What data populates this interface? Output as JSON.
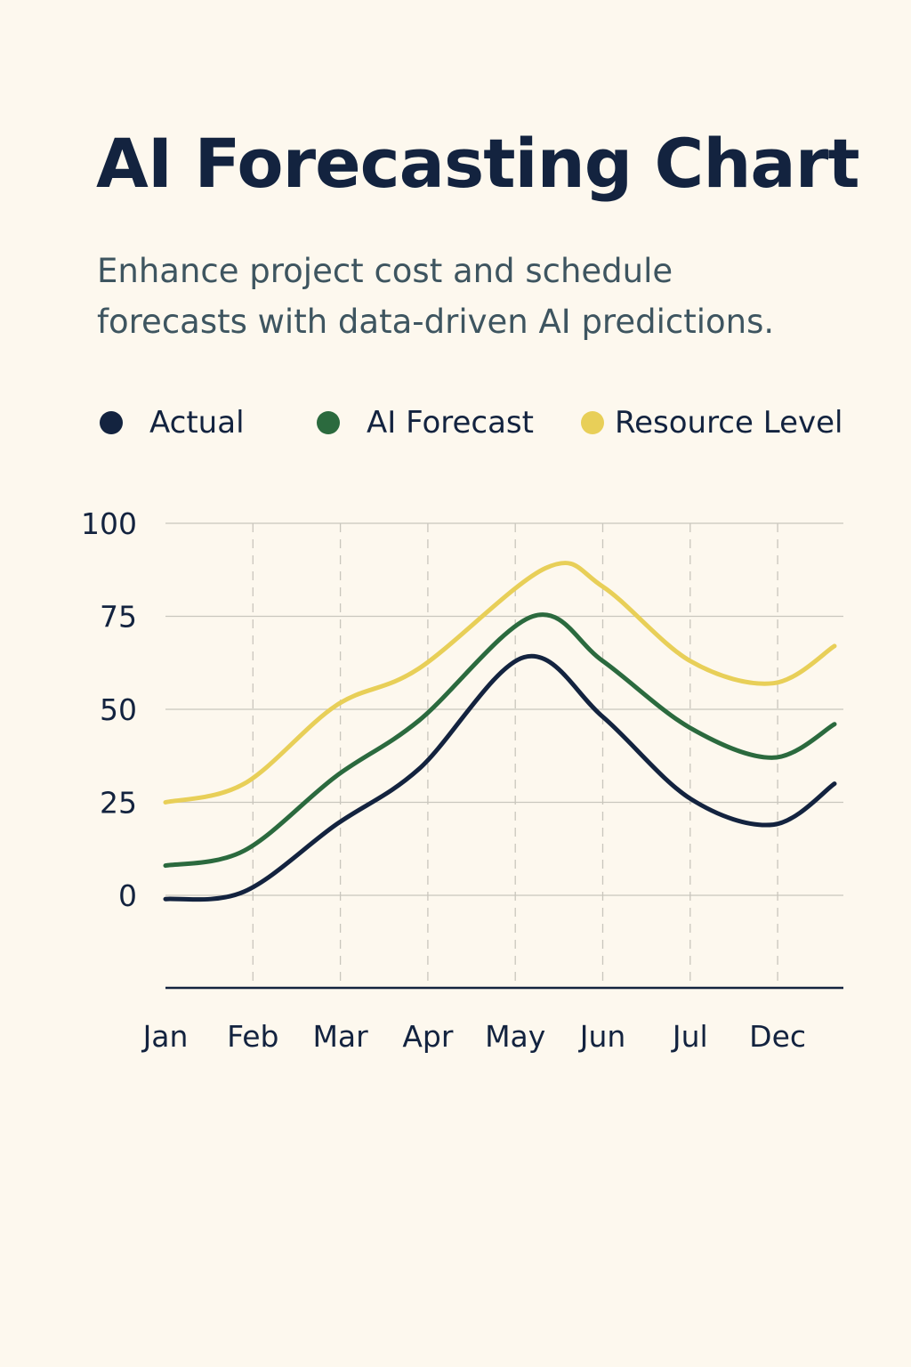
{
  "colors": {
    "background": "#fdf8ee",
    "title": "#13233f",
    "subtitle": "#3e5560",
    "axis_text": "#13233f",
    "grid": "#c9c6bd",
    "axis_line": "#13233f"
  },
  "header": {
    "title": "AI Forecasting Chart",
    "subtitle": "Enhance project cost and schedule forecasts with data-driven AI predictions."
  },
  "legend": [
    {
      "label": "Actual",
      "color": "#13233f"
    },
    {
      "label": "AI Forecast",
      "color": "#2b6a3e"
    },
    {
      "label": "Resource Level",
      "color": "#e8cf58"
    }
  ],
  "chart_data": {
    "type": "line",
    "title": "AI Forecasting Chart",
    "xlabel": "",
    "ylabel": "",
    "categories": [
      "Jan",
      "Feb",
      "Mar",
      "Apr",
      "May",
      "Jun",
      "Jul",
      "Dec"
    ],
    "yticks": [
      0,
      25,
      50,
      75,
      100
    ],
    "ylim": [
      -25,
      100
    ],
    "grid": true,
    "legend_position": "top",
    "series": [
      {
        "name": "Actual",
        "color": "#13233f",
        "x": [
          0,
          0.9,
          1.95,
          2.9,
          4.1,
          5.0,
          6.0,
          6.95,
          7.65
        ],
        "values": [
          -1,
          1,
          19,
          34,
          64,
          48,
          26,
          19,
          30
        ]
      },
      {
        "name": "AI Forecast",
        "color": "#2b6a3e",
        "x": [
          0,
          0.9,
          1.95,
          2.9,
          4.2,
          5.0,
          6.0,
          6.95,
          7.65
        ],
        "values": [
          8,
          12,
          32,
          47,
          75,
          63,
          45,
          37,
          46
        ]
      },
      {
        "name": "Resource Level",
        "color": "#e8cf58",
        "x": [
          0,
          0.9,
          1.95,
          2.9,
          4.35,
          5.0,
          6.0,
          6.95,
          7.65
        ],
        "values": [
          25,
          30,
          51,
          61,
          88,
          83,
          63,
          57,
          67
        ]
      }
    ]
  }
}
